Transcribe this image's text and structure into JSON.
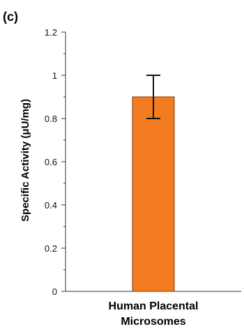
{
  "panel_label": "(c)",
  "chart_data": {
    "type": "bar",
    "categories": [
      "Human Placental Microsomes"
    ],
    "category_label_lines": [
      [
        "Human Placental",
        "Microsomes"
      ]
    ],
    "values": [
      0.9
    ],
    "error": [
      0.1
    ],
    "ylabel": "Specific Activity (μU/mg)",
    "xlabel": "",
    "ylim": [
      0,
      1.2
    ],
    "yticks": [
      0,
      0.2,
      0.4,
      0.6,
      0.8,
      1,
      1.2
    ],
    "ytick_labels": [
      "0",
      "0.2",
      "0.4",
      "0.6",
      "0.8",
      "1",
      "1.2"
    ],
    "grid": false,
    "legend": "none",
    "bar_color": "#f47c20",
    "bar_edge_color": "#7a3a10"
  }
}
